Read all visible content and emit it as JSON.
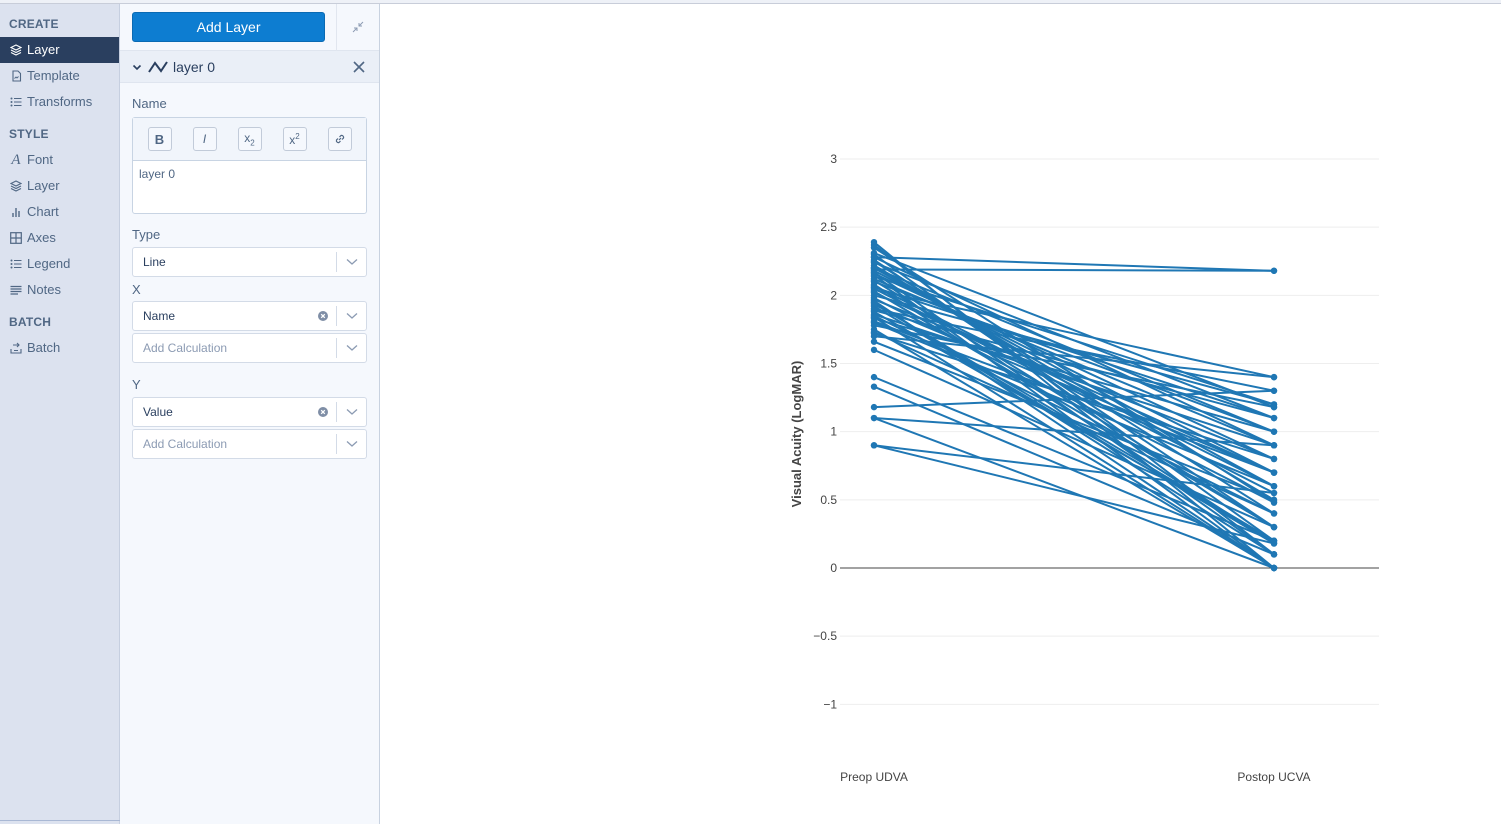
{
  "sidebar": {
    "sections": [
      {
        "title": "CREATE",
        "items": [
          {
            "label": "Layer",
            "icon": "layers-icon",
            "active": true
          },
          {
            "label": "Template",
            "icon": "template-icon"
          },
          {
            "label": "Transforms",
            "icon": "list-icon"
          }
        ]
      },
      {
        "title": "STYLE",
        "items": [
          {
            "label": "Font",
            "icon": "font-icon"
          },
          {
            "label": "Layer",
            "icon": "layers-icon"
          },
          {
            "label": "Chart",
            "icon": "bar-chart-icon"
          },
          {
            "label": "Axes",
            "icon": "grid-icon"
          },
          {
            "label": "Legend",
            "icon": "list-icon"
          },
          {
            "label": "Notes",
            "icon": "lines-icon"
          }
        ]
      },
      {
        "title": "BATCH",
        "items": [
          {
            "label": "Batch",
            "icon": "batch-icon"
          }
        ]
      }
    ]
  },
  "panel": {
    "add_layer_label": "Add Layer",
    "layer_title": "layer 0",
    "name_label": "Name",
    "name_value": "layer 0",
    "toolbar": {
      "bold": "B",
      "italic": "I",
      "sub": "x",
      "sup": "x"
    },
    "type_label": "Type",
    "type_value": "Line",
    "x_label": "X",
    "x_value": "Name",
    "x_calc_placeholder": "Add Calculation",
    "y_label": "Y",
    "y_value": "Value",
    "y_calc_placeholder": "Add Calculation"
  },
  "chart_data": {
    "type": "line",
    "title": "",
    "xlabel": "",
    "ylabel": "Visual Acuity (LogMAR)",
    "categories": [
      "Preop UDVA",
      "Postop UCVA"
    ],
    "ylim": [
      -1.4,
      3.2
    ],
    "yticks": [
      3,
      2.5,
      2,
      1.5,
      1,
      0.5,
      0,
      -0.5,
      -1
    ],
    "ytick_labels": [
      "3",
      "2.5",
      "2",
      "1.5",
      "1",
      "0.5",
      "0",
      "−0.5",
      "−1"
    ],
    "grid": true,
    "legend": false,
    "color": "#1f77b4",
    "pairs": [
      [
        2.39,
        0.0
      ],
      [
        2.37,
        0.1
      ],
      [
        2.3,
        0.2
      ],
      [
        2.28,
        2.18
      ],
      [
        2.26,
        0.3
      ],
      [
        2.25,
        0.4
      ],
      [
        2.22,
        0.5
      ],
      [
        2.2,
        0.6
      ],
      [
        2.19,
        2.18
      ],
      [
        2.18,
        0.7
      ],
      [
        2.16,
        0.8
      ],
      [
        2.15,
        0.0
      ],
      [
        2.12,
        0.9
      ],
      [
        2.1,
        1.0
      ],
      [
        2.08,
        0.18
      ],
      [
        2.06,
        1.1
      ],
      [
        2.05,
        0.55
      ],
      [
        2.03,
        0.3
      ],
      [
        2.0,
        1.2
      ],
      [
        1.98,
        0.48
      ],
      [
        1.96,
        0.0
      ],
      [
        1.95,
        0.1
      ],
      [
        1.93,
        0.7
      ],
      [
        1.9,
        1.3
      ],
      [
        1.88,
        0.2
      ],
      [
        1.86,
        0.9
      ],
      [
        1.85,
        0.4
      ],
      [
        1.83,
        1.0
      ],
      [
        1.8,
        0.6
      ],
      [
        1.78,
        1.18
      ],
      [
        1.75,
        0.0
      ],
      [
        1.72,
        0.8
      ],
      [
        1.7,
        1.4
      ],
      [
        1.66,
        0.5
      ],
      [
        1.6,
        0.3
      ],
      [
        1.4,
        0.2
      ],
      [
        1.33,
        0.1
      ],
      [
        1.18,
        1.3
      ],
      [
        1.1,
        0.0
      ],
      [
        1.1,
        0.9
      ],
      [
        0.9,
        0.55
      ],
      [
        0.9,
        0.18
      ],
      [
        2.24,
        1.1
      ],
      [
        2.14,
        1.2
      ],
      [
        2.02,
        0.7
      ],
      [
        1.92,
        0.18
      ],
      [
        2.35,
        0.48
      ],
      [
        2.28,
        0.9
      ],
      [
        1.97,
        0.8
      ],
      [
        2.11,
        0.3
      ],
      [
        1.84,
        0.0
      ],
      [
        2.2,
        1.0
      ],
      [
        1.73,
        0.4
      ],
      [
        2.07,
        0.6
      ],
      [
        2.31,
        1.18
      ],
      [
        1.89,
        1.1
      ],
      [
        2.17,
        0.1
      ],
      [
        1.94,
        0.2
      ],
      [
        2.04,
        1.4
      ],
      [
        1.81,
        0.7
      ]
    ]
  }
}
